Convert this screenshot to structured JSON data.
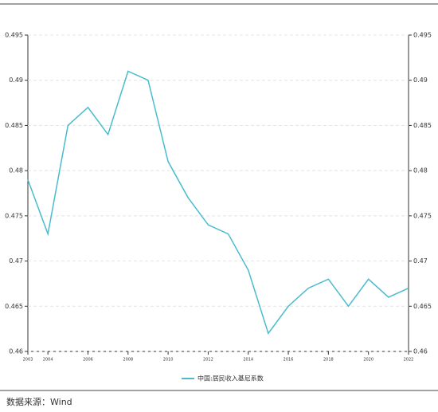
{
  "chart_data": {
    "type": "line",
    "x": [
      2003,
      2004,
      2005,
      2006,
      2007,
      2008,
      2009,
      2010,
      2011,
      2012,
      2013,
      2014,
      2015,
      2016,
      2017,
      2018,
      2019,
      2020,
      2021,
      2022
    ],
    "series": [
      {
        "name": "中国:居民收入基尼系数",
        "color": "#4bbccc",
        "values": [
          0.479,
          0.473,
          0.485,
          0.487,
          0.484,
          0.491,
          0.49,
          0.481,
          0.477,
          0.474,
          0.473,
          0.469,
          0.462,
          0.465,
          0.467,
          0.468,
          0.465,
          0.468,
          0.466,
          0.467
        ]
      }
    ],
    "xlim": [
      2003,
      2022
    ],
    "xticks": [
      2003,
      2004,
      2006,
      2008,
      2010,
      2012,
      2014,
      2016,
      2018,
      2020,
      2022
    ],
    "ylim": [
      0.46,
      0.495
    ],
    "yticks": [
      0.46,
      0.465,
      0.47,
      0.475,
      0.48,
      0.485,
      0.49,
      0.495
    ],
    "grid": true,
    "legend": "bottom"
  },
  "source": "数据来源：Wind"
}
